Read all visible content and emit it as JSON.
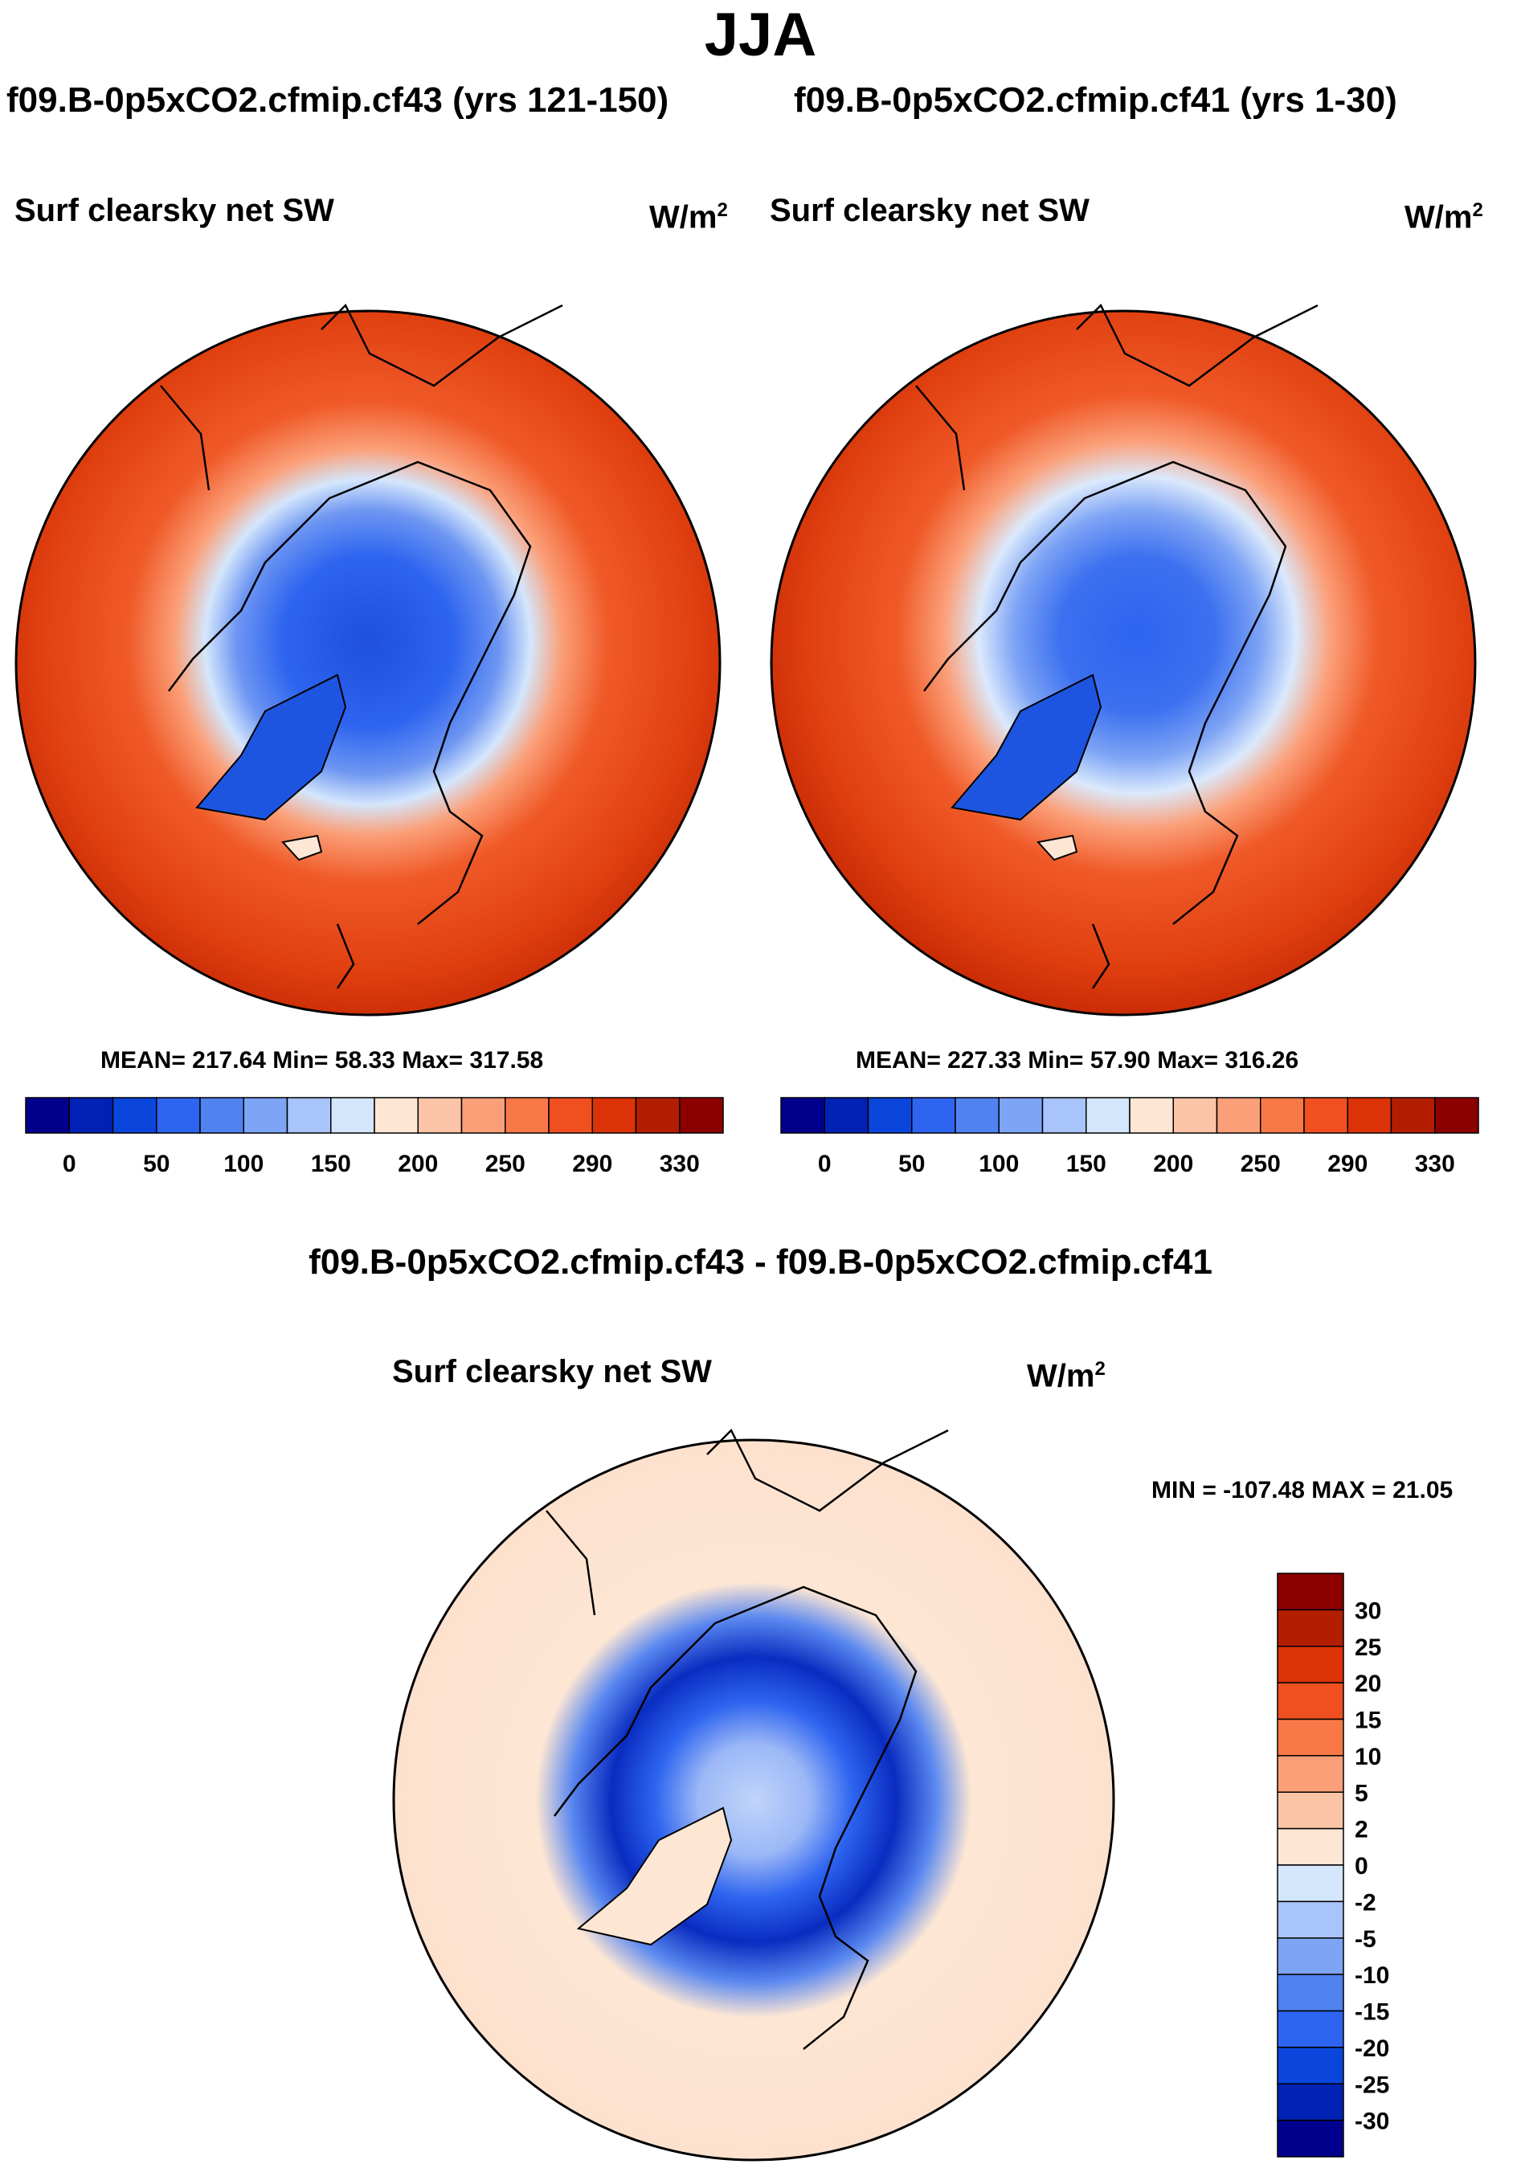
{
  "title": "JJA",
  "panels": [
    {
      "title": "f09.B-0p5xCO2.cfmip.cf43 (yrs 121-150)",
      "variable": "Surf clearsky net SW",
      "units_base": "W/m",
      "units_exp": "2",
      "stats": "MEAN= 217.64  Min=  58.33  Max= 317.58"
    },
    {
      "title": "f09.B-0p5xCO2.cfmip.cf41 (yrs 1-30)",
      "variable": "Surf clearsky net SW",
      "units_base": "W/m",
      "units_exp": "2",
      "stats": "MEAN= 227.33  Min=  57.90  Max= 316.26"
    }
  ],
  "difference": {
    "title": "f09.B-0p5xCO2.cfmip.cf43 - f09.B-0p5xCO2.cfmip.cf41",
    "variable": "Surf clearsky net SW",
    "units_base": "W/m",
    "units_exp": "2",
    "minmax": "MIN = -107.48 MAX =  21.05"
  },
  "chart_data": [
    {
      "type": "heatmap",
      "projection": "north polar stereographic",
      "title": "f09.B-0p5xCO2.cfmip.cf43 (yrs 121-150)",
      "variable": "Surf clearsky net SW",
      "units": "W/m2",
      "mean": 217.64,
      "min": 58.33,
      "max": 317.58,
      "colorbar": {
        "orientation": "horizontal",
        "tick_labels": [
          "0",
          "50",
          "100",
          "150",
          "200",
          "250",
          "290",
          "330"
        ],
        "colors": [
          "#00008c",
          "#0022b4",
          "#0a46dc",
          "#2d64f0",
          "#5082f0",
          "#7ea4f5",
          "#a8c4fa",
          "#d4e6fc",
          "#fde6d4",
          "#fcc4a6",
          "#fb9f78",
          "#f87848",
          "#f05020",
          "#dc3208",
          "#b41e00",
          "#8c0000"
        ]
      }
    },
    {
      "type": "heatmap",
      "projection": "north polar stereographic",
      "title": "f09.B-0p5xCO2.cfmip.cf41 (yrs 1-30)",
      "variable": "Surf clearsky net SW",
      "units": "W/m2",
      "mean": 227.33,
      "min": 57.9,
      "max": 316.26,
      "colorbar": {
        "orientation": "horizontal",
        "tick_labels": [
          "0",
          "50",
          "100",
          "150",
          "200",
          "250",
          "290",
          "330"
        ],
        "colors": [
          "#00008c",
          "#0022b4",
          "#0a46dc",
          "#2d64f0",
          "#5082f0",
          "#7ea4f5",
          "#a8c4fa",
          "#d4e6fc",
          "#fde6d4",
          "#fcc4a6",
          "#fb9f78",
          "#f87848",
          "#f05020",
          "#dc3208",
          "#b41e00",
          "#8c0000"
        ]
      }
    },
    {
      "type": "heatmap",
      "projection": "north polar stereographic",
      "title": "f09.B-0p5xCO2.cfmip.cf43 - f09.B-0p5xCO2.cfmip.cf41",
      "variable": "Surf clearsky net SW",
      "units": "W/m2",
      "min": -107.48,
      "max": 21.05,
      "colorbar": {
        "orientation": "vertical",
        "tick_labels": [
          "30",
          "25",
          "20",
          "15",
          "10",
          "5",
          "2",
          "0",
          "-2",
          "-5",
          "-10",
          "-15",
          "-20",
          "-25",
          "-30"
        ],
        "colors": [
          "#8c0000",
          "#b41e00",
          "#dc3208",
          "#f05020",
          "#f87848",
          "#fb9f78",
          "#fcc4a6",
          "#fde6d4",
          "#d4e6fc",
          "#a8c4fa",
          "#7ea4f5",
          "#5082f0",
          "#2d64f0",
          "#0a46dc",
          "#0022b4",
          "#00008c"
        ]
      }
    }
  ]
}
